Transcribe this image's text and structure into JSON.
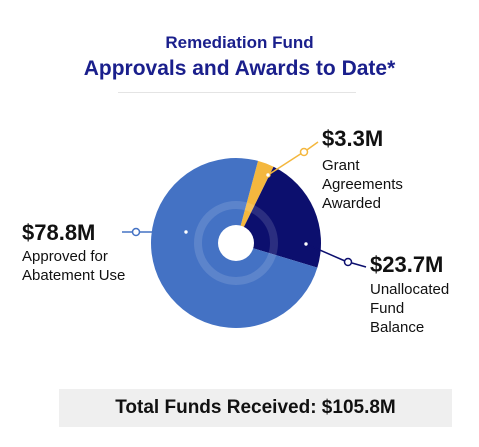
{
  "header": {
    "title": "Remediation Fund",
    "subtitle": "Approvals and Awards to Date*"
  },
  "chart_data": {
    "type": "pie",
    "unit": "$M",
    "slices": [
      {
        "amount_label": "$3.3M",
        "label": "Grant Agreements Awarded",
        "value": 3.3,
        "color": "#f4b73e"
      },
      {
        "amount_label": "$23.7M",
        "label": "Unallocated Fund Balance",
        "value": 23.7,
        "color": "#0c0f6e"
      },
      {
        "amount_label": "$78.8M",
        "label": "Approved for Abatement Use",
        "value": 78.8,
        "color": "#4472c4"
      }
    ]
  },
  "footer": {
    "total_label": "Total Funds Received: $105.8M"
  }
}
